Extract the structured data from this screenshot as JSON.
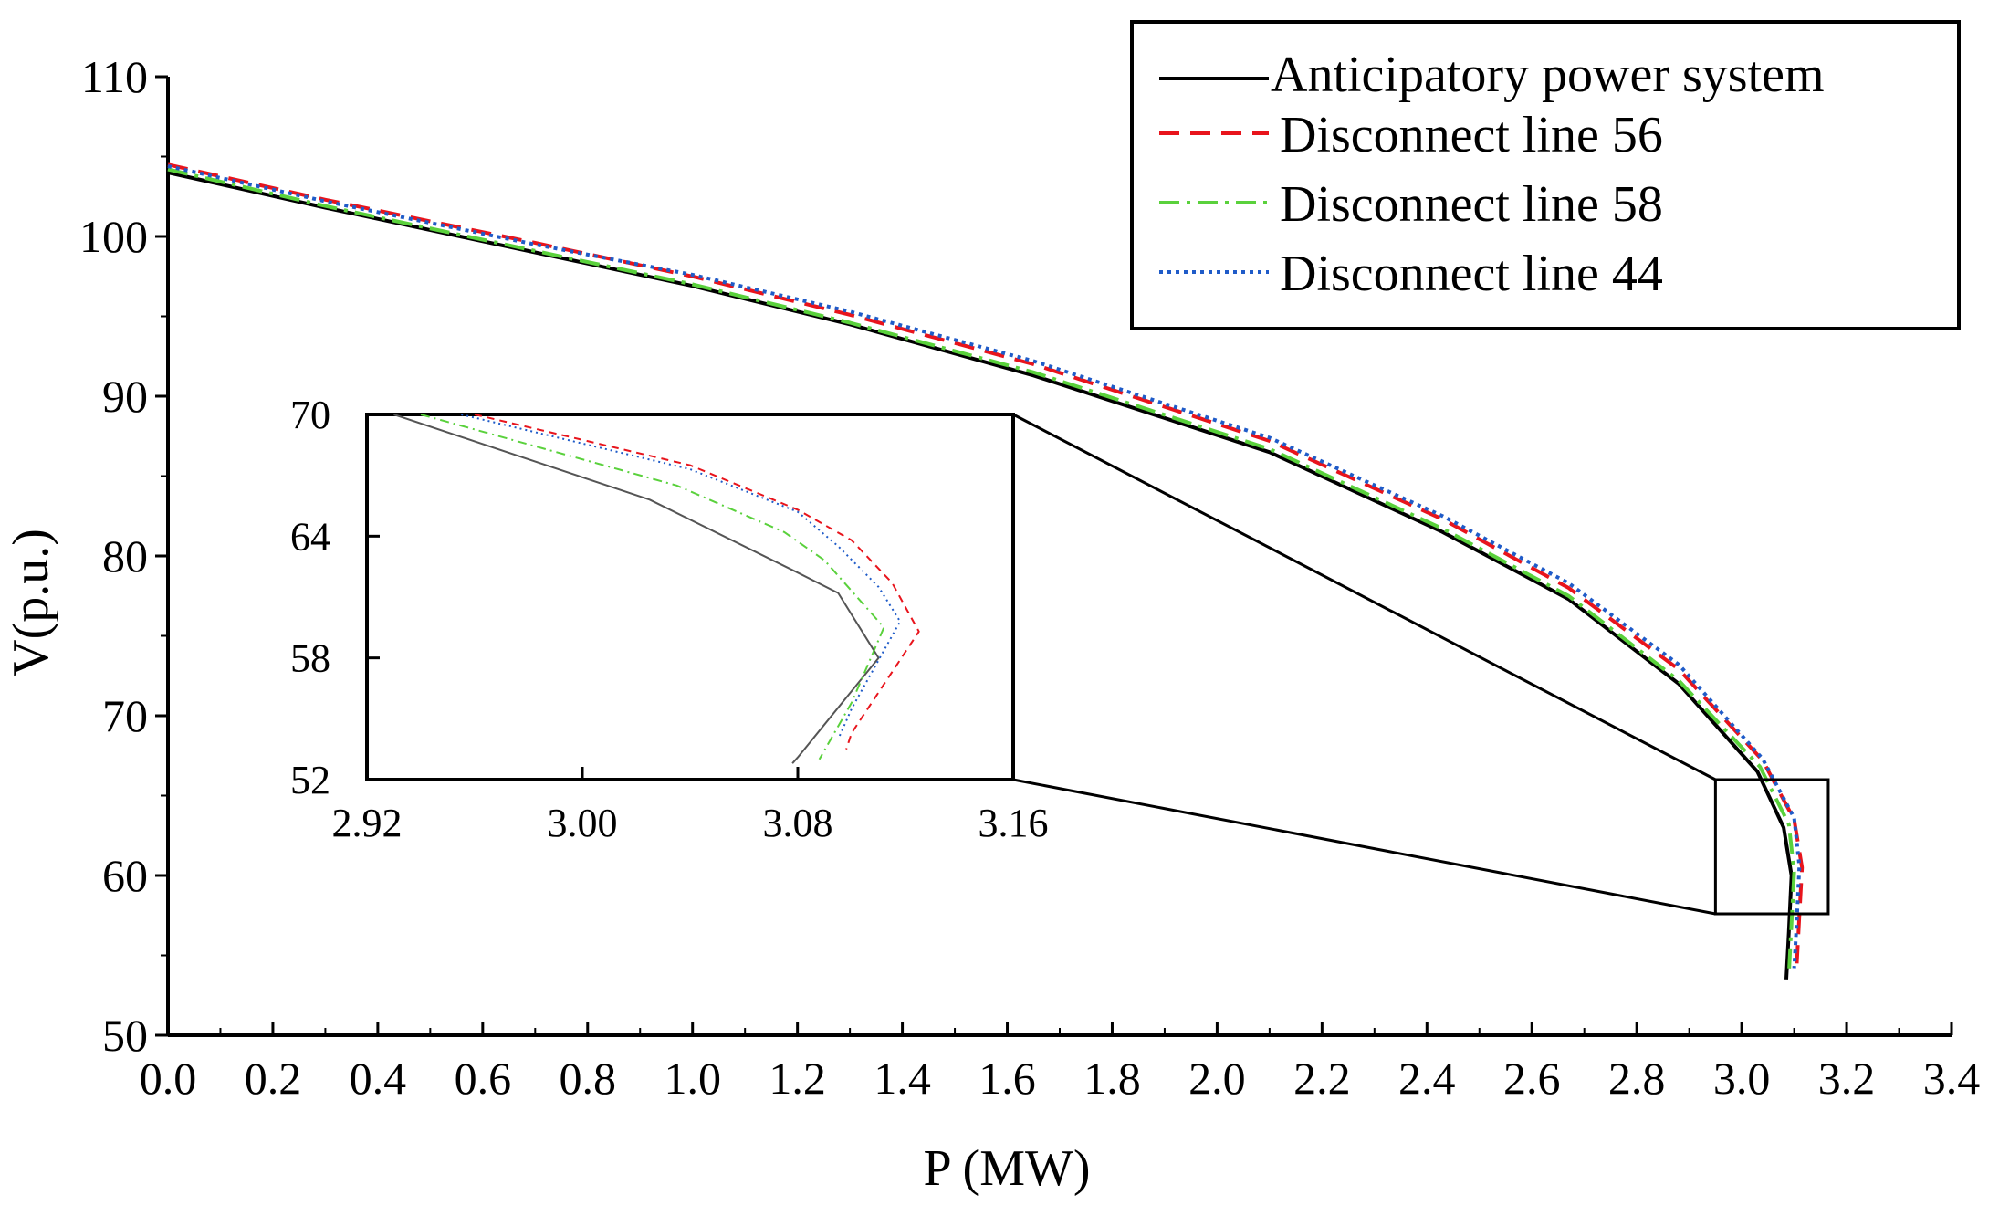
{
  "chart_data": {
    "type": "line",
    "title": "",
    "xlabel": "P (MW)",
    "ylabel": "V(p.u.)",
    "xlim": [
      0.0,
      3.4
    ],
    "ylim": [
      50,
      110
    ],
    "xticks": [
      "0.0",
      "0.2",
      "0.4",
      "0.6",
      "0.8",
      "1.0",
      "1.2",
      "1.4",
      "1.6",
      "1.8",
      "2.0",
      "2.2",
      "2.4",
      "2.6",
      "2.8",
      "3.0",
      "3.2",
      "3.4"
    ],
    "yticks": [
      "50",
      "60",
      "70",
      "80",
      "90",
      "100",
      "110"
    ],
    "legend_position": "top-right",
    "series": [
      {
        "name": "Anticipatory power system",
        "color": "#000000",
        "style": "solid",
        "points": [
          [
            0.0,
            104.0
          ],
          [
            0.3,
            101.8
          ],
          [
            0.7,
            99.0
          ],
          [
            1.0,
            96.9
          ],
          [
            1.3,
            94.5
          ],
          [
            1.65,
            91.3
          ],
          [
            2.1,
            86.5
          ],
          [
            2.43,
            81.5
          ],
          [
            2.67,
            77.3
          ],
          [
            2.88,
            72.0
          ],
          [
            3.03,
            66.5
          ],
          [
            3.08,
            63.0
          ],
          [
            3.095,
            60.0
          ],
          [
            3.09,
            56.5
          ],
          [
            3.085,
            53.5
          ]
        ]
      },
      {
        "name": "Disconnect line 56",
        "color": "#e8141c",
        "style": "dashed",
        "points": [
          [
            0.0,
            104.5
          ],
          [
            0.3,
            102.3
          ],
          [
            0.7,
            99.6
          ],
          [
            1.0,
            97.5
          ],
          [
            1.3,
            95.1
          ],
          [
            1.65,
            92.0
          ],
          [
            2.1,
            87.2
          ],
          [
            2.43,
            82.3
          ],
          [
            2.67,
            78.0
          ],
          [
            2.88,
            72.9
          ],
          [
            3.04,
            67.2
          ],
          [
            3.1,
            63.5
          ],
          [
            3.115,
            60.5
          ],
          [
            3.11,
            57.5
          ],
          [
            3.105,
            54.5
          ]
        ]
      },
      {
        "name": "Disconnect line 58",
        "color": "#5ad13c",
        "style": "dashdot",
        "points": [
          [
            0.0,
            104.2
          ],
          [
            0.3,
            101.9
          ],
          [
            0.7,
            99.1
          ],
          [
            1.0,
            97.0
          ],
          [
            1.3,
            94.6
          ],
          [
            1.65,
            91.5
          ],
          [
            2.1,
            86.7
          ],
          [
            2.43,
            81.7
          ],
          [
            2.67,
            77.5
          ],
          [
            2.88,
            72.2
          ],
          [
            3.035,
            66.8
          ],
          [
            3.09,
            63.2
          ],
          [
            3.1,
            60.2
          ],
          [
            3.095,
            57.0
          ],
          [
            3.09,
            53.8
          ]
        ]
      },
      {
        "name": "Disconnect line 44",
        "color": "#1f5bc8",
        "style": "dotted",
        "points": [
          [
            0.0,
            104.4
          ],
          [
            0.3,
            102.2
          ],
          [
            0.7,
            99.5
          ],
          [
            1.0,
            97.6
          ],
          [
            1.3,
            95.3
          ],
          [
            1.65,
            92.2
          ],
          [
            2.1,
            87.4
          ],
          [
            2.43,
            82.5
          ],
          [
            2.67,
            78.3
          ],
          [
            2.88,
            73.2
          ],
          [
            3.04,
            67.3
          ],
          [
            3.1,
            63.6
          ],
          [
            3.11,
            60.6
          ],
          [
            3.105,
            57.2
          ],
          [
            3.1,
            54.2
          ]
        ]
      }
    ],
    "zoom_box": {
      "xlim": [
        2.95,
        3.165
      ],
      "ylim": [
        57.6,
        66.0
      ]
    },
    "inset": {
      "xlim": [
        2.92,
        3.16
      ],
      "ylim": [
        52,
        70
      ],
      "xticks": [
        "2.92",
        "3.00",
        "3.08",
        "3.16"
      ],
      "yticks": [
        "52",
        "58",
        "64",
        "70"
      ],
      "series": [
        {
          "name": "Anticipatory power system",
          "color": "#555555",
          "style": "solid",
          "points": [
            [
              2.93,
              70.0
            ],
            [
              3.025,
              65.8
            ],
            [
              3.08,
              62.2
            ],
            [
              3.095,
              61.2
            ],
            [
              3.11,
              58.0
            ],
            [
              3.08,
              53.1
            ],
            [
              3.078,
              52.8
            ]
          ]
        },
        {
          "name": "Disconnect line 56",
          "color": "#e8141c",
          "style": "dashed",
          "points": [
            [
              2.96,
              70.0
            ],
            [
              3.04,
              67.5
            ],
            [
              3.08,
              65.3
            ],
            [
              3.1,
              63.8
            ],
            [
              3.115,
              61.7
            ],
            [
              3.125,
              59.3
            ],
            [
              3.1,
              54.3
            ],
            [
              3.098,
              53.5
            ]
          ]
        },
        {
          "name": "Disconnect line 58",
          "color": "#5ad13c",
          "style": "dashdot",
          "points": [
            [
              2.94,
              70.0
            ],
            [
              3.035,
              66.5
            ],
            [
              3.075,
              64.2
            ],
            [
              3.09,
              62.8
            ],
            [
              3.102,
              61.0
            ],
            [
              3.112,
              59.5
            ],
            [
              3.1,
              55.8
            ],
            [
              3.088,
              53.0
            ]
          ]
        },
        {
          "name": "Disconnect line 44",
          "color": "#1f5bc8",
          "style": "dotted",
          "points": [
            [
              2.955,
              70.0
            ],
            [
              3.04,
              67.3
            ],
            [
              3.08,
              65.2
            ],
            [
              3.095,
              63.5
            ],
            [
              3.11,
              61.5
            ],
            [
              3.118,
              59.8
            ],
            [
              3.1,
              55.5
            ],
            [
              3.095,
              54.0
            ]
          ]
        }
      ]
    }
  }
}
